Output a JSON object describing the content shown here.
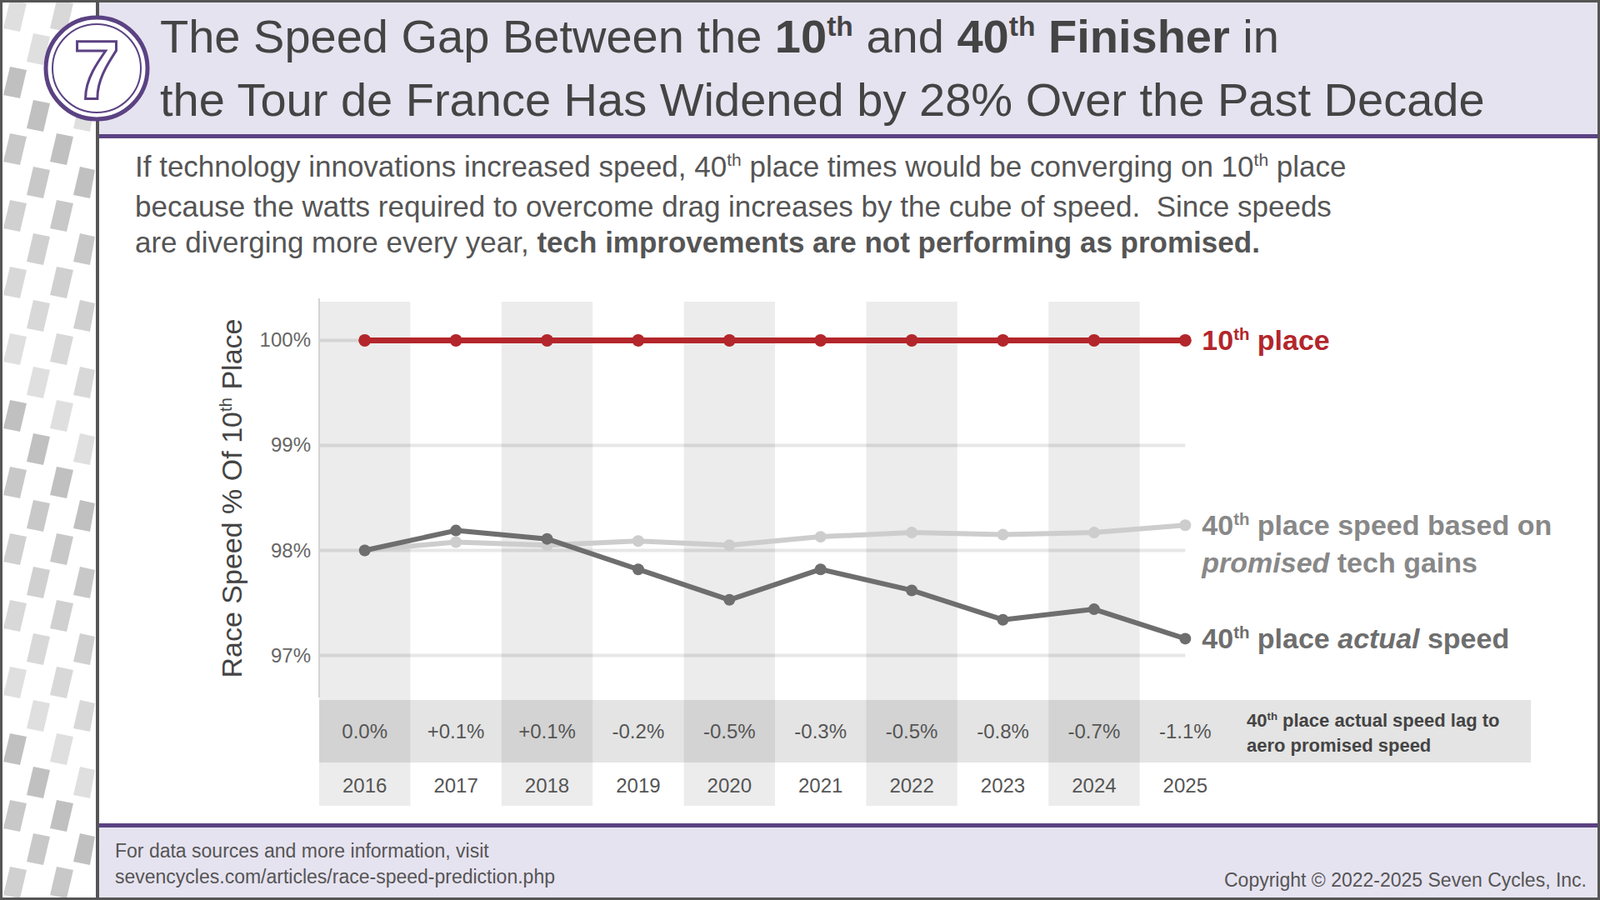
{
  "logo": "7",
  "header": {
    "title": [
      [
        {
          "text": "The Speed Gap Between the "
        },
        {
          "text": "10",
          "b": true
        },
        {
          "text": "th",
          "b": true,
          "sup": true
        },
        {
          "text": " and "
        },
        {
          "text": "40",
          "b": true
        },
        {
          "text": "th",
          "b": true,
          "sup": true
        },
        {
          "text": " Finisher",
          "b": true
        },
        {
          "text": " in"
        }
      ],
      [
        {
          "text": "the Tour de France Has Widened by 28% Over the Past Decade"
        }
      ]
    ]
  },
  "chart_data": {
    "type": "line",
    "subtitle": [
      [
        {
          "text": "If technology innovations increased speed, 40"
        },
        {
          "text": "th",
          "sup": true
        },
        {
          "text": " place times would be converging on 10"
        },
        {
          "text": "th",
          "sup": true
        },
        {
          "text": " place"
        }
      ],
      [
        {
          "text": "because the watts required to overcome drag increases by the cube of speed.  Since speeds"
        }
      ],
      [
        {
          "text": "are diverging more every year, "
        },
        {
          "text": "tech improvements are not performing as promised.",
          "b": true
        }
      ]
    ],
    "y_label": [
      {
        "text": "Race Speed % Of 10"
      },
      {
        "text": "th",
        "sup": true
      },
      {
        "text": " Place"
      }
    ],
    "categories": [
      "2016",
      "2017",
      "2018",
      "2019",
      "2020",
      "2021",
      "2022",
      "2023",
      "2024",
      "2025"
    ],
    "series": [
      {
        "name": [
          {
            "text": "10"
          },
          {
            "text": "th",
            "sup": true
          },
          {
            "text": " place"
          }
        ],
        "color": "#b3262b",
        "marker": "circle",
        "values": [
          100,
          100,
          100,
          100,
          100,
          100,
          100,
          100,
          100,
          100
        ]
      },
      {
        "name": [
          {
            "text": "40"
          },
          {
            "text": "th",
            "sup": true
          },
          {
            "text": " place speed based on "
          },
          {
            "text": "promised",
            "i": true
          },
          {
            "text": " tech gains"
          }
        ],
        "color": "#cdcdcd",
        "marker": "circle",
        "values": [
          98.0,
          98.08,
          98.05,
          98.09,
          98.05,
          98.13,
          98.17,
          98.15,
          98.17,
          98.24
        ]
      },
      {
        "name": [
          {
            "text": "40"
          },
          {
            "text": "th",
            "sup": true
          },
          {
            "text": " place "
          },
          {
            "text": "actual",
            "i": true
          },
          {
            "text": " speed"
          }
        ],
        "color": "#6e6e6e",
        "marker": "circle",
        "values": [
          98.0,
          98.19,
          98.11,
          97.82,
          97.53,
          97.82,
          97.62,
          97.34,
          97.44,
          97.16
        ]
      }
    ],
    "ylim": [
      96.6,
      100.4
    ],
    "yticks": [
      {
        "value": 97,
        "label": "97%"
      },
      {
        "value": 98,
        "label": "98%"
      },
      {
        "value": 99,
        "label": "99%"
      },
      {
        "value": 100,
        "label": "100%"
      }
    ],
    "grid": true,
    "legend": "right",
    "annotation_row": {
      "title": [
        {
          "text": "40"
        },
        {
          "text": "th",
          "sup": true
        },
        {
          "text": " place actual speed lag to aero promised speed"
        }
      ],
      "labels": [
        "0.0%",
        "+0.1%",
        "+0.1%",
        "-0.2%",
        "-0.5%",
        "-0.3%",
        "-0.5%",
        "-0.8%",
        "-0.7%",
        "-1.1%"
      ]
    }
  },
  "footer": {
    "source": [
      "For data sources and more information, visit",
      "sevencycles.com/articles/race-speed-prediction.php"
    ],
    "copyright": "Copyright © 2022-2025 Seven Cycles, Inc."
  }
}
